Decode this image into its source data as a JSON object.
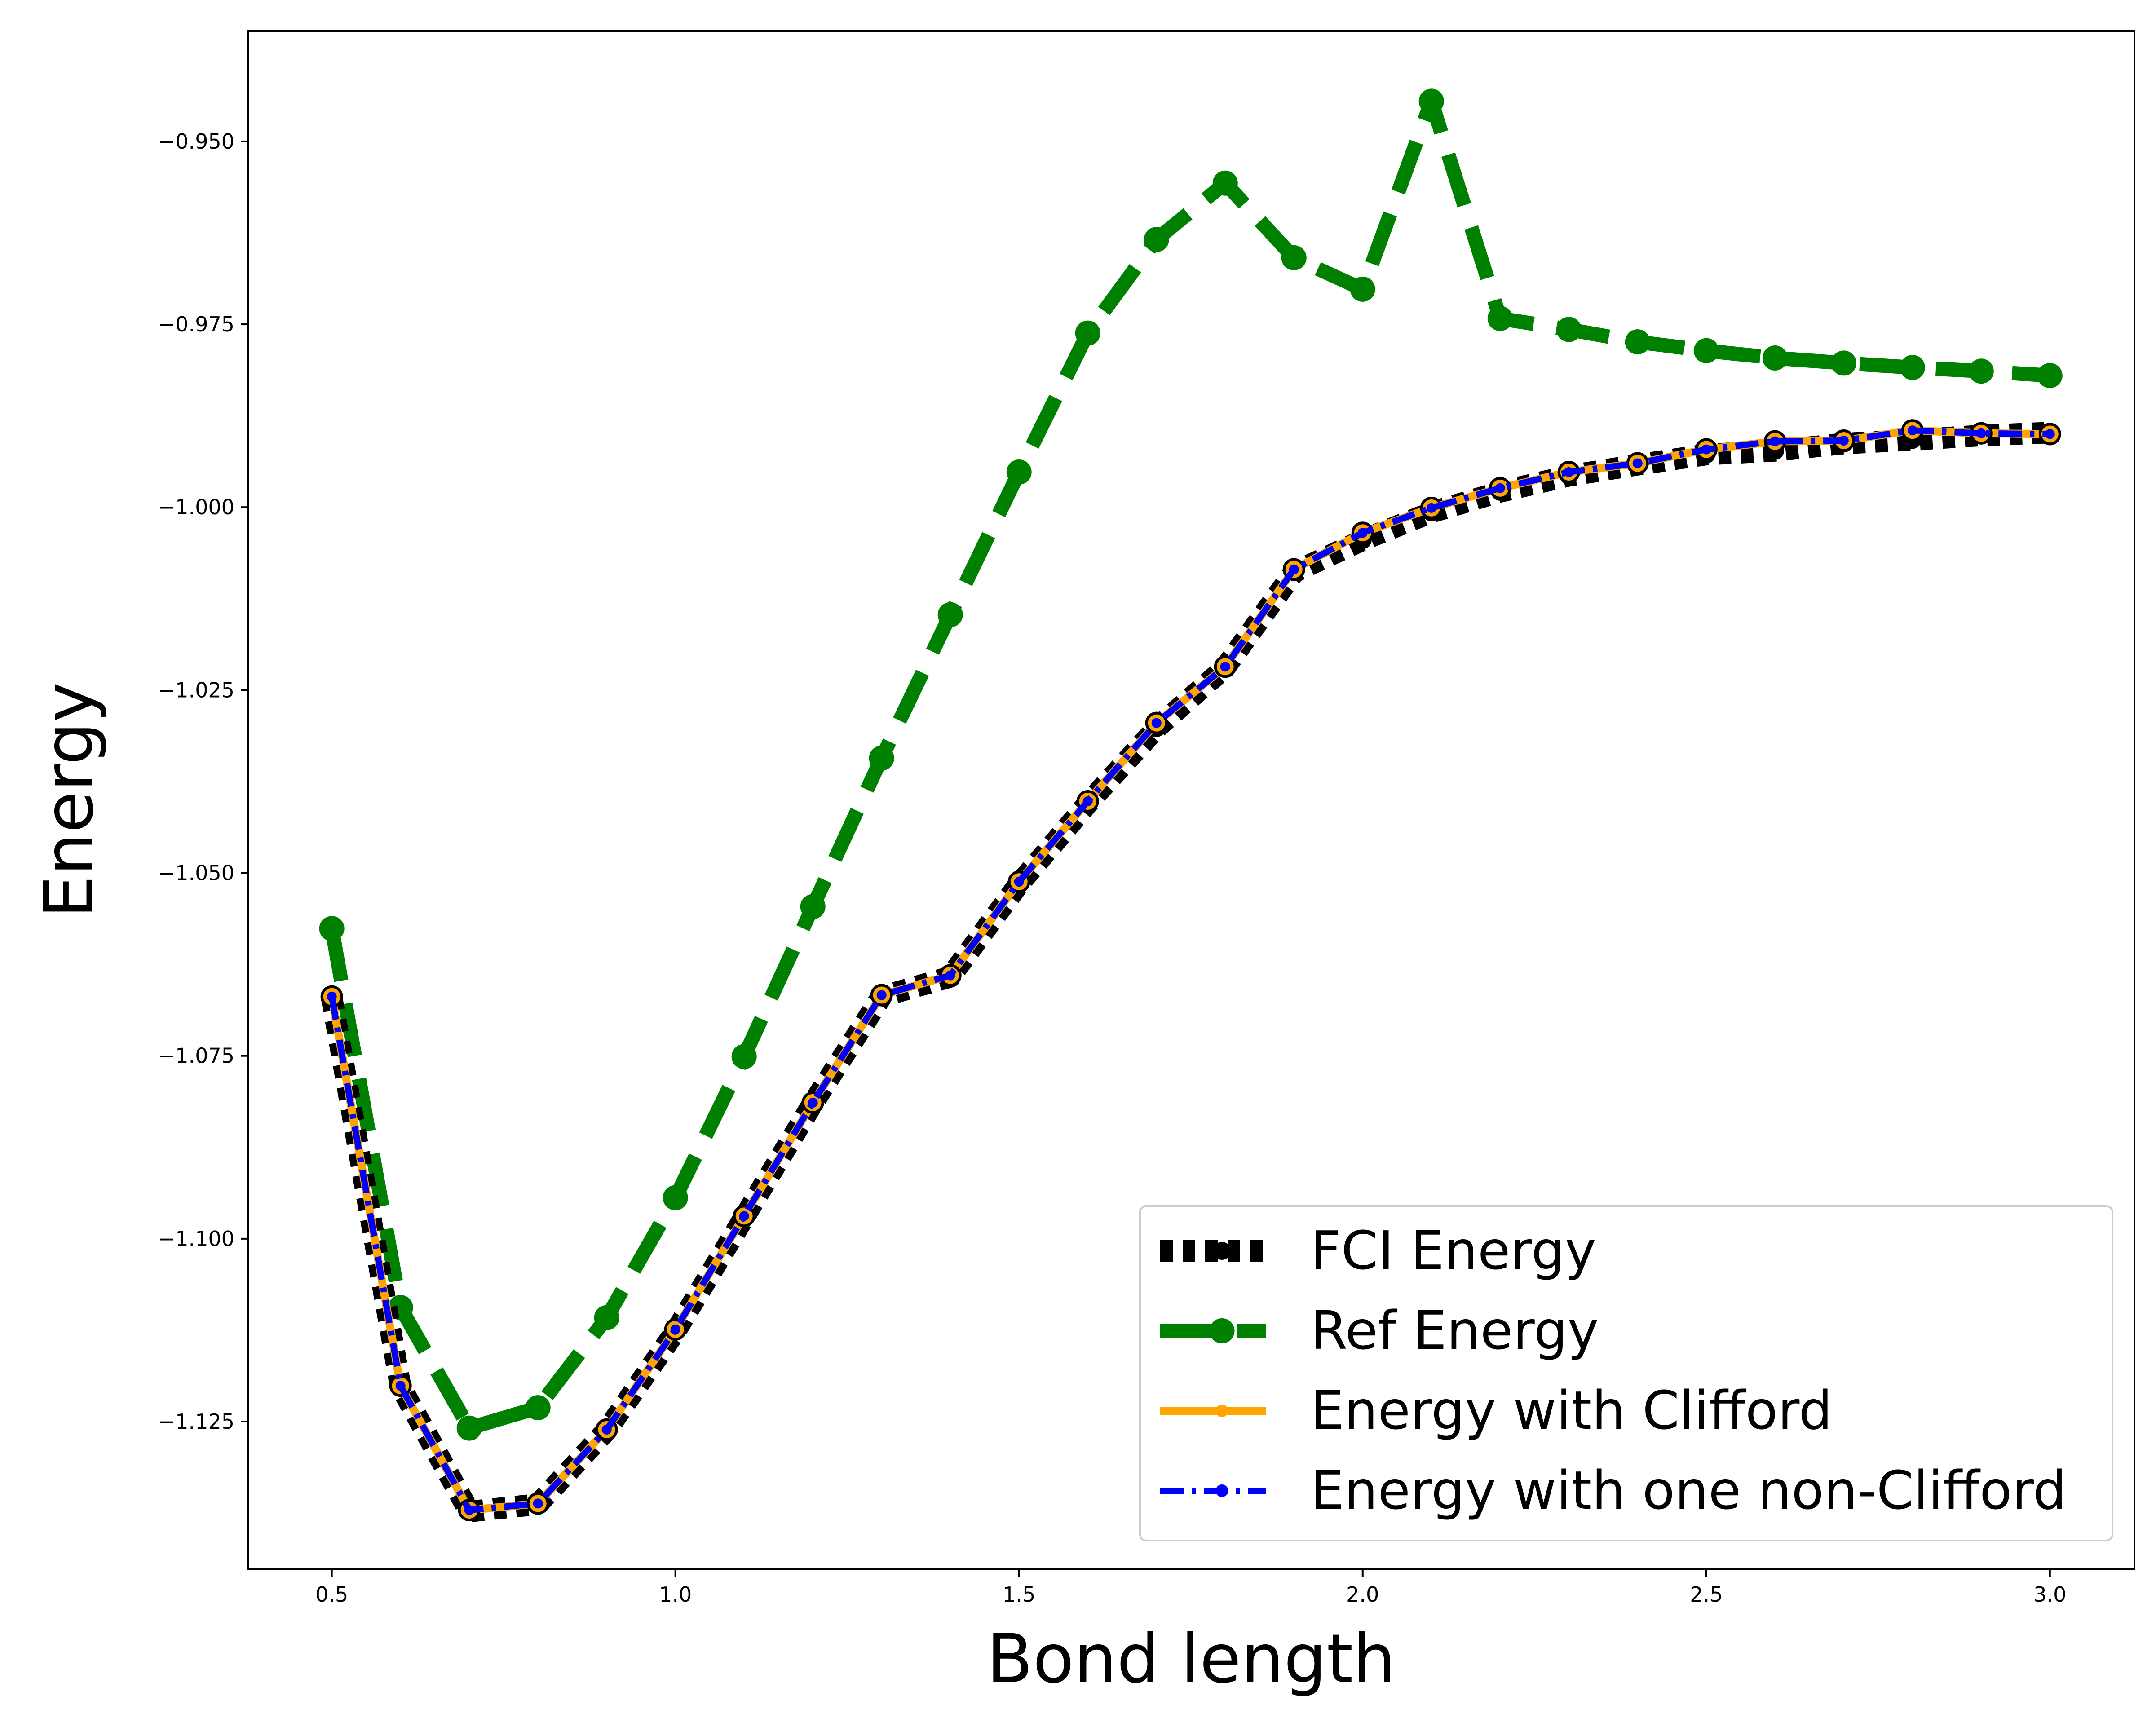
{
  "chart_data": {
    "type": "line",
    "title": "",
    "xlabel": "Bond length",
    "ylabel": "Energy",
    "xlim": [
      0.378,
      3.123
    ],
    "ylim": [
      -1.1452,
      -0.9349
    ],
    "x_ticks": [
      0.5,
      1.0,
      1.5,
      2.0,
      2.5,
      3.0
    ],
    "x_tick_labels": [
      "0.5",
      "1.0",
      "1.5",
      "2.0",
      "2.5",
      "3.0"
    ],
    "y_ticks": [
      -0.95,
      -0.975,
      -1.0,
      -1.025,
      -1.05,
      -1.075,
      -1.1,
      -1.125
    ],
    "y_tick_labels": [
      "−0.950",
      "−0.975",
      "−1.000",
      "−1.025",
      "−1.050",
      "−1.075",
      "−1.100",
      "−1.125"
    ],
    "grid": false,
    "legend_position": "lower-right",
    "x": [
      0.5,
      0.6,
      0.7,
      0.8,
      0.9,
      1.0,
      1.1,
      1.2,
      1.3,
      1.4,
      1.5,
      1.6,
      1.7,
      1.8,
      1.9,
      2.0,
      2.1,
      2.2,
      2.3,
      2.4,
      2.5,
      2.6,
      2.7,
      2.8,
      2.9,
      3.0
    ],
    "series": [
      {
        "name": "FCI Energy",
        "color": "#000000",
        "style": "dotted",
        "values": [
          -1.0671,
          -1.1202,
          -1.1373,
          -1.1363,
          -1.1262,
          -1.1127,
          -1.0971,
          -1.0815,
          -1.0669,
          -1.0642,
          -1.0515,
          -1.0405,
          -1.0302,
          -1.0219,
          -1.0089,
          -1.0045,
          -1.0007,
          -0.9979,
          -0.9957,
          -0.9942,
          -0.9928,
          -0.9923,
          -0.9913,
          -0.9908,
          -0.9902,
          -0.9898
        ]
      },
      {
        "name": "Ref Energy",
        "color": "#008000",
        "style": "dashed",
        "values": [
          -1.0576,
          -1.1094,
          -1.1259,
          -1.1231,
          -1.1108,
          -1.0944,
          -1.0751,
          -1.0546,
          -1.0343,
          -1.0147,
          -0.9952,
          -0.9762,
          -0.9634,
          -0.9557,
          -0.9659,
          -0.9702,
          -0.9445,
          -0.9742,
          -0.9757,
          -0.9774,
          -0.9786,
          -0.9796,
          -0.9803,
          -0.9809,
          -0.9814,
          -0.982
        ]
      },
      {
        "name": "Energy with Clifford",
        "color": "#ffa500",
        "style": "solid",
        "values": [
          -1.0669,
          -1.1201,
          -1.1371,
          -1.1362,
          -1.1261,
          -1.1124,
          -1.0969,
          -1.0814,
          -1.0667,
          -1.064,
          -1.0512,
          -1.0402,
          -1.0295,
          -1.0218,
          -1.0085,
          -1.0035,
          -1.0001,
          -0.9974,
          -0.9952,
          -0.994,
          -0.9921,
          -0.991,
          -0.9909,
          -0.9895,
          -0.9899,
          -0.99
        ]
      },
      {
        "name": "Energy with one non-Clifford",
        "color": "#0000ff",
        "style": "dashdot",
        "values": [
          -1.0669,
          -1.1201,
          -1.1371,
          -1.1362,
          -1.1261,
          -1.1124,
          -1.0969,
          -1.0814,
          -1.0667,
          -1.064,
          -1.0512,
          -1.0402,
          -1.0295,
          -1.0218,
          -1.0085,
          -1.0035,
          -1.0001,
          -0.9974,
          -0.9952,
          -0.994,
          -0.9921,
          -0.991,
          -0.9909,
          -0.9895,
          -0.9899,
          -0.99
        ]
      }
    ]
  }
}
